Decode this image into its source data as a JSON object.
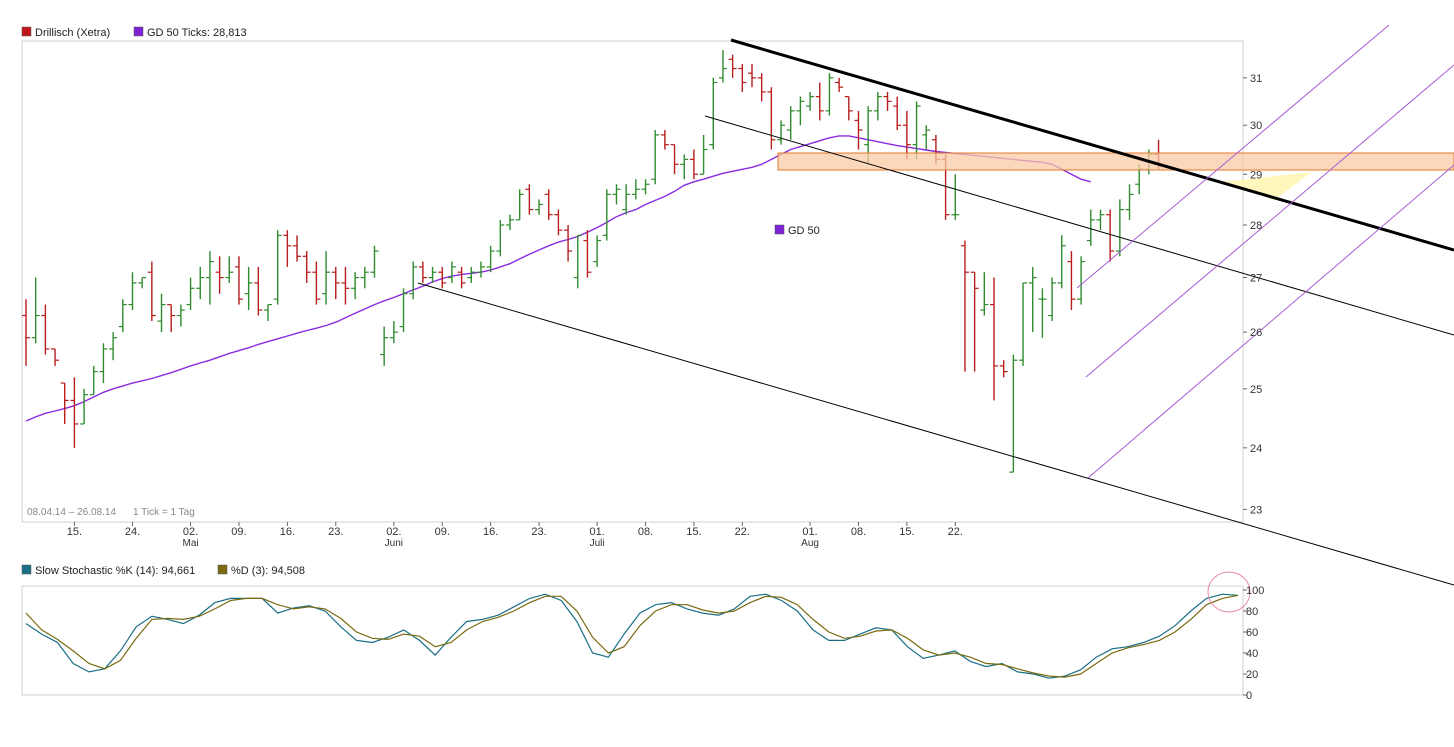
{
  "colors": {
    "up": "#2e8b2e",
    "down": "#b81c1c",
    "ma": "#8a2be2",
    "stoch_k": "#1a6f86",
    "stoch_d": "#7a6a10",
    "zone_fill": "#f9c9a6",
    "zone_stroke": "#e0782c",
    "trend": "#000000",
    "channel": "#a65bd6"
  },
  "legend_main": [
    {
      "swatch": "#c01818",
      "label": "Drillisch (Xetra)"
    },
    {
      "swatch": "#7e22d8",
      "label": "GD 50 Ticks: 28,813"
    }
  ],
  "legend_stoch": [
    {
      "swatch": "#1a6f86",
      "label": "Slow Stochastic %K (14): 94,661"
    },
    {
      "swatch": "#7a6a10",
      "label": "%D (3): 94,508"
    }
  ],
  "ma_label": "GD 50",
  "range_text": "08.04.14 – 26.08.14",
  "tick_text": "1 Tick = 1 Tag",
  "chart_data": [
    {
      "type": "ohlc",
      "ylim": [
        22.8,
        31.8
      ],
      "yticks": [
        23,
        24,
        25,
        26,
        27,
        28,
        29,
        30,
        31
      ],
      "log_scale": true,
      "grid": false,
      "xticks": [
        {
          "i": 5,
          "label": "15."
        },
        {
          "i": 11,
          "label": "24."
        },
        {
          "i": 17,
          "label": "02.",
          "sub": "Mai"
        },
        {
          "i": 22,
          "label": "09."
        },
        {
          "i": 27,
          "label": "16."
        },
        {
          "i": 32,
          "label": "23."
        },
        {
          "i": 38,
          "label": "02.",
          "sub": "Juni"
        },
        {
          "i": 43,
          "label": "09."
        },
        {
          "i": 48,
          "label": "16."
        },
        {
          "i": 53,
          "label": "23."
        },
        {
          "i": 59,
          "label": "01.",
          "sub": "Juli"
        },
        {
          "i": 64,
          "label": "08."
        },
        {
          "i": 69,
          "label": "15."
        },
        {
          "i": 74,
          "label": "22."
        },
        {
          "i": 81,
          "label": "01.",
          "sub": "Aug"
        },
        {
          "i": 86,
          "label": "08."
        },
        {
          "i": 91,
          "label": "15."
        },
        {
          "i": 96,
          "label": "22."
        }
      ],
      "bars": [
        [
          26.3,
          26.6,
          25.4,
          25.9
        ],
        [
          25.9,
          27.0,
          25.8,
          26.3
        ],
        [
          26.3,
          26.5,
          25.6,
          25.7
        ],
        [
          25.7,
          25.7,
          25.4,
          25.5
        ],
        [
          25.1,
          25.1,
          24.4,
          24.8
        ],
        [
          24.8,
          25.2,
          24.0,
          24.4
        ],
        [
          24.4,
          25.0,
          24.4,
          24.9
        ],
        [
          24.9,
          25.4,
          24.9,
          25.3
        ],
        [
          25.3,
          25.8,
          25.1,
          25.7
        ],
        [
          25.7,
          26.0,
          25.5,
          25.9
        ],
        [
          26.1,
          26.6,
          26.0,
          26.5
        ],
        [
          26.5,
          27.1,
          26.4,
          26.9
        ],
        [
          26.9,
          27.0,
          26.8,
          27.0
        ],
        [
          27.1,
          27.3,
          26.2,
          26.3
        ],
        [
          26.2,
          26.7,
          26.0,
          26.5
        ],
        [
          26.5,
          26.5,
          26.0,
          26.3
        ],
        [
          26.3,
          26.5,
          26.1,
          26.4
        ],
        [
          26.5,
          27.0,
          26.4,
          26.8
        ],
        [
          26.8,
          27.2,
          26.6,
          27.0
        ],
        [
          27.0,
          27.5,
          26.5,
          27.3
        ],
        [
          27.1,
          27.4,
          26.7,
          27.0
        ],
        [
          27.0,
          27.4,
          26.9,
          27.1
        ],
        [
          27.2,
          27.4,
          26.5,
          26.6
        ],
        [
          26.7,
          27.2,
          26.4,
          26.9
        ],
        [
          26.9,
          27.2,
          26.3,
          26.4
        ],
        [
          26.4,
          26.5,
          26.2,
          26.5
        ],
        [
          26.6,
          27.9,
          26.5,
          27.8
        ],
        [
          27.8,
          27.9,
          27.2,
          27.6
        ],
        [
          27.6,
          27.8,
          27.3,
          27.4
        ],
        [
          27.4,
          27.5,
          26.9,
          27.1
        ],
        [
          27.1,
          27.3,
          26.5,
          26.6
        ],
        [
          26.7,
          27.5,
          26.5,
          27.1
        ],
        [
          27.1,
          27.2,
          26.6,
          26.9
        ],
        [
          26.9,
          27.2,
          26.5,
          26.8
        ],
        [
          26.8,
          27.1,
          26.6,
          27.0
        ],
        [
          27.0,
          27.2,
          26.8,
          27.1
        ],
        [
          27.1,
          27.6,
          27.0,
          27.5
        ],
        [
          25.6,
          26.1,
          25.4,
          25.9
        ],
        [
          25.9,
          26.2,
          25.8,
          26.0
        ],
        [
          26.1,
          26.8,
          26.0,
          26.7
        ],
        [
          26.7,
          27.3,
          26.6,
          27.2
        ],
        [
          27.2,
          27.3,
          26.9,
          27.0
        ],
        [
          27.0,
          27.2,
          26.9,
          27.1
        ],
        [
          27.1,
          27.2,
          26.8,
          26.9
        ],
        [
          27.0,
          27.3,
          26.9,
          27.2
        ],
        [
          27.1,
          27.2,
          26.8,
          26.9
        ],
        [
          27.0,
          27.2,
          26.9,
          27.1
        ],
        [
          27.1,
          27.3,
          27.0,
          27.2
        ],
        [
          27.2,
          27.6,
          27.1,
          27.5
        ],
        [
          27.5,
          28.1,
          27.4,
          28.0
        ],
        [
          28.0,
          28.2,
          27.9,
          28.1
        ],
        [
          28.1,
          28.7,
          28.1,
          28.6
        ],
        [
          28.7,
          28.8,
          28.2,
          28.3
        ],
        [
          28.3,
          28.5,
          28.2,
          28.4
        ],
        [
          28.6,
          28.7,
          28.1,
          28.2
        ],
        [
          28.2,
          28.3,
          27.8,
          27.9
        ],
        [
          27.9,
          28.0,
          27.3,
          27.5
        ],
        [
          27.0,
          27.8,
          26.8,
          27.8
        ],
        [
          27.7,
          27.9,
          27.0,
          27.1
        ],
        [
          27.3,
          27.8,
          27.2,
          27.7
        ],
        [
          27.8,
          28.7,
          27.7,
          28.6
        ],
        [
          28.6,
          28.8,
          28.4,
          28.7
        ],
        [
          28.3,
          28.8,
          28.2,
          28.6
        ],
        [
          28.6,
          28.9,
          28.5,
          28.7
        ],
        [
          28.7,
          28.9,
          28.6,
          28.8
        ],
        [
          28.9,
          29.9,
          28.8,
          29.8
        ],
        [
          29.8,
          29.9,
          29.5,
          29.6
        ],
        [
          29.6,
          29.6,
          29.0,
          29.2
        ],
        [
          29.2,
          29.4,
          28.9,
          29.3
        ],
        [
          29.3,
          29.5,
          28.9,
          29.0
        ],
        [
          29.0,
          29.8,
          29.0,
          29.5
        ],
        [
          29.6,
          31.0,
          29.5,
          30.9
        ],
        [
          31.0,
          31.6,
          30.9,
          31.2
        ],
        [
          31.4,
          31.5,
          31.0,
          31.2
        ],
        [
          31.2,
          31.3,
          30.7,
          30.9
        ],
        [
          31.1,
          31.3,
          30.8,
          31.0
        ],
        [
          31.0,
          31.1,
          30.5,
          30.7
        ],
        [
          30.7,
          30.8,
          29.5,
          29.7
        ],
        [
          29.7,
          30.1,
          29.6,
          30.0
        ],
        [
          29.9,
          30.4,
          29.7,
          30.3
        ],
        [
          30.3,
          30.6,
          30.0,
          30.5
        ],
        [
          30.4,
          30.7,
          30.3,
          30.6
        ],
        [
          30.6,
          30.9,
          30.1,
          30.3
        ],
        [
          30.3,
          31.1,
          30.2,
          31.0
        ],
        [
          30.9,
          31.0,
          30.7,
          30.8
        ],
        [
          30.6,
          30.6,
          30.1,
          30.3
        ],
        [
          30.1,
          30.3,
          29.5,
          29.9
        ],
        [
          29.6,
          30.4,
          29.2,
          30.3
        ],
        [
          30.3,
          30.7,
          30.1,
          30.6
        ],
        [
          30.6,
          30.7,
          30.3,
          30.5
        ],
        [
          30.4,
          30.6,
          29.9,
          30.0
        ],
        [
          30.0,
          30.3,
          29.3,
          29.6
        ],
        [
          29.6,
          30.5,
          29.3,
          30.4
        ],
        [
          29.8,
          30.0,
          29.5,
          29.9
        ],
        [
          29.7,
          29.8,
          29.2,
          29.3
        ],
        [
          29.3,
          29.4,
          28.1,
          28.2
        ],
        [
          28.2,
          29.0,
          28.1,
          28.2
        ],
        [
          27.6,
          27.7,
          25.3,
          27.1
        ],
        [
          27.1,
          27.1,
          25.3,
          26.8
        ],
        [
          26.4,
          27.1,
          26.3,
          26.5
        ],
        [
          26.5,
          27.0,
          24.8,
          25.4
        ],
        [
          25.4,
          25.5,
          25.2,
          25.3
        ],
        [
          23.6,
          25.6,
          23.6,
          25.5
        ],
        [
          25.5,
          26.9,
          25.4,
          26.9
        ],
        [
          26.9,
          27.2,
          26.0,
          27.0
        ],
        [
          26.6,
          26.8,
          25.9,
          26.6
        ],
        [
          26.3,
          27.0,
          26.2,
          26.9
        ],
        [
          26.9,
          27.8,
          26.8,
          27.6
        ],
        [
          27.3,
          27.5,
          26.4,
          26.6
        ],
        [
          26.6,
          27.4,
          26.5,
          27.3
        ],
        [
          27.7,
          28.3,
          27.6,
          28.1
        ],
        [
          28.1,
          28.3,
          27.9,
          28.2
        ],
        [
          28.2,
          28.3,
          27.3,
          27.5
        ],
        [
          27.5,
          28.5,
          27.4,
          28.3
        ],
        [
          28.3,
          28.8,
          28.1,
          28.6
        ],
        [
          28.8,
          29.2,
          28.6,
          29.1
        ],
        [
          29.1,
          29.5,
          29.0,
          29.4
        ],
        [
          29.4,
          29.7,
          29.1,
          29.2
        ]
      ],
      "ma_series": [
        24.45,
        24.52,
        24.58,
        24.62,
        24.66,
        24.71,
        24.78,
        24.86,
        24.94,
        25.0,
        25.05,
        25.1,
        25.14,
        25.18,
        25.23,
        25.28,
        25.34,
        25.4,
        25.45,
        25.5,
        25.56,
        25.62,
        25.67,
        25.72,
        25.78,
        25.83,
        25.88,
        25.93,
        25.98,
        26.03,
        26.07,
        26.12,
        26.18,
        26.26,
        26.34,
        26.42,
        26.5,
        26.57,
        26.63,
        26.7,
        26.77,
        26.84,
        26.92,
        26.98,
        27.03,
        27.06,
        27.08,
        27.1,
        27.14,
        27.2,
        27.26,
        27.35,
        27.44,
        27.52,
        27.6,
        27.67,
        27.72,
        27.78,
        27.86,
        27.95,
        28.05,
        28.16,
        28.24,
        28.3,
        28.4,
        28.48,
        28.56,
        28.66,
        28.78,
        28.85,
        28.9,
        28.96,
        29.02,
        29.06,
        29.1,
        29.14,
        29.2,
        29.3,
        29.4,
        29.5,
        29.56,
        29.62,
        29.68,
        29.74,
        29.78,
        29.78,
        29.74,
        29.7,
        29.66,
        29.62,
        29.58,
        29.55,
        29.52,
        29.49,
        29.46,
        29.44,
        29.42,
        29.4,
        29.38,
        29.36,
        29.34,
        29.32,
        29.3,
        29.28,
        29.26,
        29.24,
        29.2,
        29.1,
        29.0,
        28.9,
        28.85
      ]
    },
    {
      "type": "line",
      "title": "",
      "ylim": [
        0,
        100
      ],
      "yticks": [
        0,
        20,
        40,
        60,
        80,
        100
      ],
      "series": [
        {
          "name": "Slow Stochastic %K (14)",
          "values": [
            68,
            58,
            50,
            30,
            22,
            25,
            42,
            65,
            75,
            72,
            68,
            76,
            88,
            92,
            92,
            92,
            78,
            83,
            85,
            80,
            65,
            52,
            50,
            55,
            62,
            52,
            38,
            55,
            70,
            72,
            76,
            84,
            92,
            96,
            90,
            70,
            40,
            36,
            58,
            78,
            86,
            88,
            82,
            78,
            76,
            82,
            94,
            96,
            90,
            80,
            62,
            52,
            52,
            58,
            64,
            62,
            46,
            35,
            38,
            42,
            32,
            27,
            30,
            22,
            20,
            16,
            18,
            24,
            36,
            44,
            46,
            50,
            56,
            66,
            80,
            92,
            96,
            95
          ]
        },
        {
          "name": "%D (3)",
          "values": [
            78,
            62,
            53,
            42,
            30,
            25,
            33,
            54,
            72,
            73,
            72,
            75,
            82,
            90,
            92,
            92,
            86,
            82,
            84,
            82,
            73,
            60,
            54,
            53,
            58,
            56,
            46,
            50,
            62,
            70,
            74,
            80,
            88,
            94,
            94,
            80,
            55,
            40,
            46,
            66,
            80,
            86,
            86,
            81,
            78,
            80,
            88,
            94,
            93,
            86,
            72,
            60,
            54,
            56,
            61,
            62,
            54,
            43,
            38,
            40,
            36,
            30,
            29,
            25,
            21,
            18,
            17,
            20,
            30,
            40,
            45,
            48,
            52,
            60,
            72,
            86,
            92,
            95
          ]
        }
      ]
    }
  ]
}
